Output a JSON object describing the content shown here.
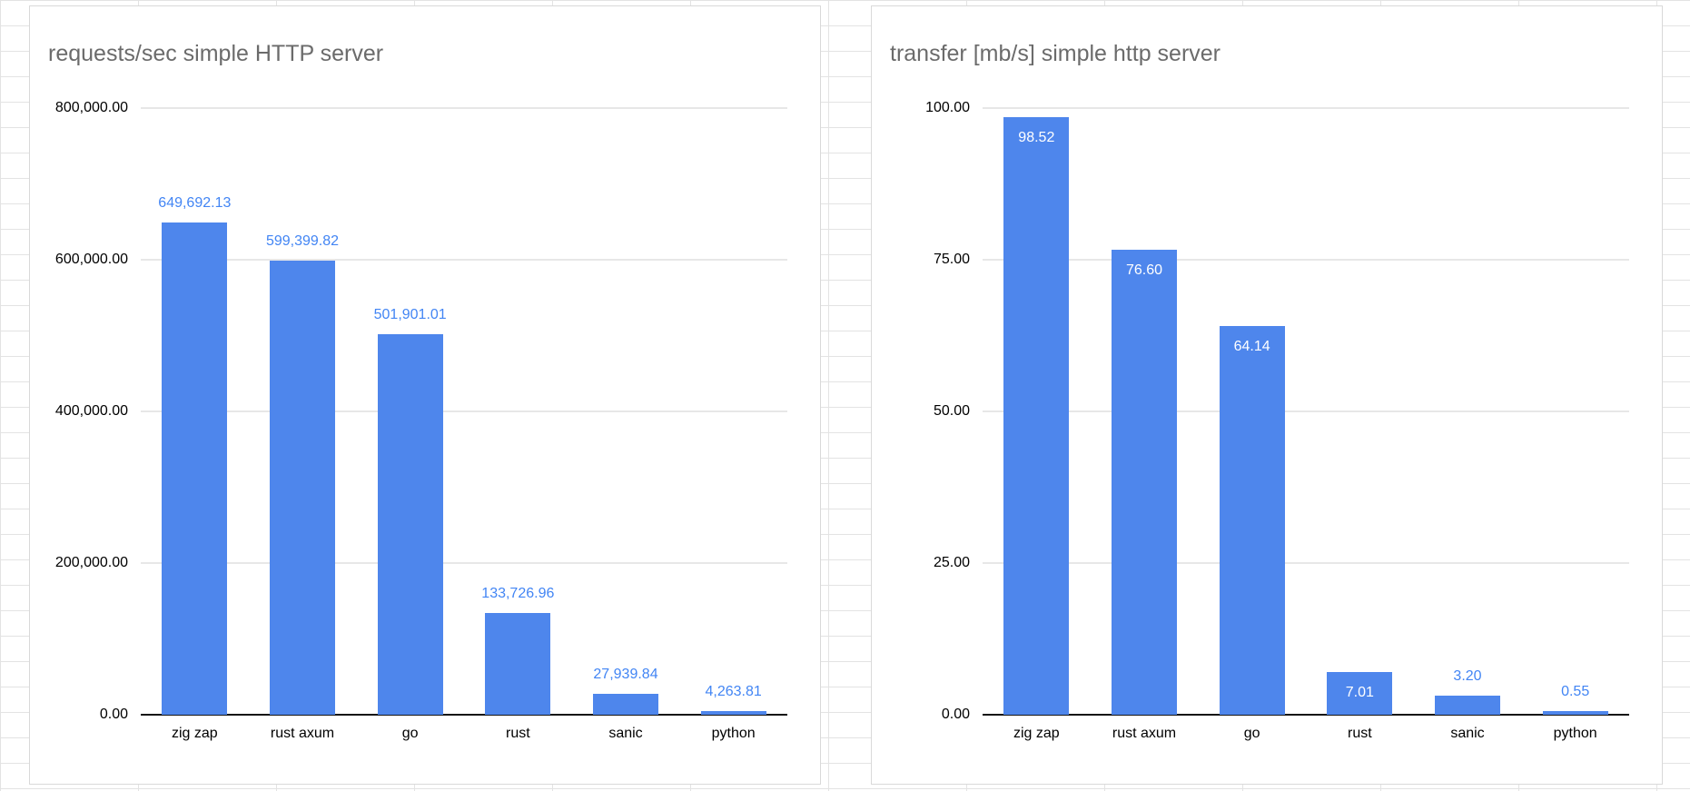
{
  "sheet": {
    "background_color": "#ffffff",
    "grid_line_color": "#e3e3e3"
  },
  "chart_data": [
    {
      "type": "bar",
      "title": "requests/sec simple HTTP server",
      "xlabel": "",
      "ylabel": "",
      "categories": [
        "zig zap",
        "rust axum",
        "go",
        "rust",
        "sanic",
        "python"
      ],
      "values": [
        649692.13,
        599399.82,
        501901.01,
        133726.96,
        27939.84,
        4263.81
      ],
      "value_labels": [
        "649,692.13",
        "599,399.82",
        "501,901.01",
        "133,726.96",
        "27,939.84",
        "4,263.81"
      ],
      "label_inside": [
        false,
        false,
        false,
        false,
        false,
        false
      ],
      "ylim": [
        0,
        800000
      ],
      "yticks": [
        0,
        200000,
        400000,
        600000,
        800000
      ],
      "ytick_labels": [
        "0.00",
        "200,000.00",
        "400,000.00",
        "600,000.00",
        "800,000.00"
      ],
      "grid": "on",
      "legend": "none",
      "bar_color": "#4e86ec",
      "value_label_color": "#4285f4",
      "title_color": "#6b6b6b"
    },
    {
      "type": "bar",
      "title": "transfer [mb/s] simple http server",
      "xlabel": "",
      "ylabel": "",
      "categories": [
        "zig zap",
        "rust axum",
        "go",
        "rust",
        "sanic",
        "python"
      ],
      "values": [
        98.52,
        76.6,
        64.14,
        7.01,
        3.2,
        0.55
      ],
      "value_labels": [
        "98.52",
        "76.60",
        "64.14",
        "7.01",
        "3.20",
        "0.55"
      ],
      "label_inside": [
        true,
        true,
        true,
        true,
        false,
        false
      ],
      "ylim": [
        0,
        100
      ],
      "yticks": [
        0,
        25,
        50,
        75,
        100
      ],
      "ytick_labels": [
        "0.00",
        "25.00",
        "50.00",
        "75.00",
        "100.00"
      ],
      "grid": "on",
      "legend": "none",
      "bar_color": "#4e86ec",
      "value_label_color": "#4285f4",
      "title_color": "#6b6b6b"
    }
  ]
}
